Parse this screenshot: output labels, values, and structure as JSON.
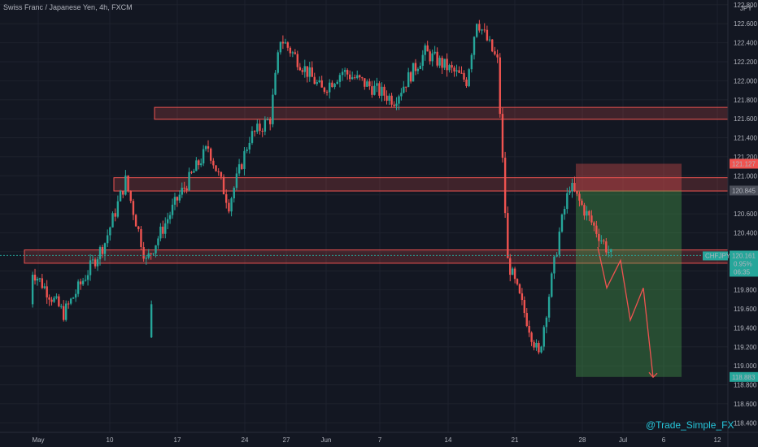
{
  "header": {
    "title": "Swiss Franc / Japanese Yen, 4h, FXCM"
  },
  "watermark": "@Trade_Simple_FX",
  "colors": {
    "bg": "#131722",
    "up": "#26a69a",
    "down": "#ef5350",
    "grid": "#1e222d",
    "zone": "#ef5350",
    "profit": "#1b5e20",
    "loss": "#7f1d1d",
    "arrow": "#ef5350"
  },
  "chart_data": {
    "type": "candlestick",
    "symbol": "CHFJPY",
    "currency": "JPY",
    "yaxis": {
      "ticks": [
        118.4,
        118.6,
        118.8,
        119.0,
        119.2,
        119.4,
        119.6,
        119.8,
        120.0,
        120.2,
        120.4,
        120.6,
        120.8,
        121.0,
        121.2,
        121.4,
        121.6,
        121.8,
        122.0,
        122.2,
        122.4,
        122.6,
        122.8
      ],
      "tick_labels": [
        "118.400",
        "118.600",
        "118.800",
        "119.000",
        "119.200",
        "119.400",
        "119.600",
        "119.800",
        "",
        "",
        "120.400",
        "120.600",
        "",
        "121.000",
        "121.200",
        "121.400",
        "121.600",
        "121.800",
        "122.000",
        "122.200",
        "122.400",
        "122.600",
        "122.800"
      ],
      "range": [
        118.3,
        122.85
      ]
    },
    "xaxis": {
      "labels": [
        "May",
        "10",
        "17",
        "24",
        "27",
        "Jun",
        "7",
        "14",
        "21",
        "28",
        "Jul",
        "6",
        "12"
      ]
    },
    "price_labels": [
      {
        "text": "121.127",
        "value": 121.127,
        "color": "#ef5350"
      },
      {
        "text": "120.845",
        "value": 120.845,
        "color": "#4a4e59"
      },
      {
        "text": "118.883",
        "value": 118.883,
        "color": "#26a69a"
      }
    ],
    "current": {
      "symbol": "CHFJPY",
      "price": "120.161",
      "change": "0.95%",
      "countdown": "06:35",
      "value": 120.161
    },
    "zones": [
      {
        "name": "resistance-zone-upper",
        "from": 121.595,
        "to": 121.72
      },
      {
        "name": "resistance-zone-middle",
        "from": 120.84,
        "to": 120.98
      },
      {
        "name": "support-zone-lower",
        "from": 120.08,
        "to": 120.22
      }
    ],
    "position": {
      "type": "short",
      "entry": 120.845,
      "stop": 121.127,
      "target": 118.883
    },
    "projection": [
      120.25,
      119.82,
      120.11,
      119.48,
      119.82,
      118.88
    ],
    "anchors": [
      {
        "price": 119.3,
        "date": "Apr 29"
      },
      {
        "price": 120.0,
        "date": "May 3"
      },
      {
        "price": 119.55,
        "date": "May 6"
      },
      {
        "price": 120.3,
        "date": "May 10"
      },
      {
        "price": 120.95,
        "date": "May 12"
      },
      {
        "price": 120.1,
        "date": "May 14"
      },
      {
        "price": 120.75,
        "date": "May 17"
      },
      {
        "price": 121.3,
        "date": "May 20"
      },
      {
        "price": 120.7,
        "date": "May 22"
      },
      {
        "price": 121.4,
        "date": "May 24"
      },
      {
        "price": 121.6,
        "date": "May 26"
      },
      {
        "price": 122.45,
        "date": "May 27"
      },
      {
        "price": 121.9,
        "date": "May 31"
      },
      {
        "price": 122.1,
        "date": "Jun 2"
      },
      {
        "price": 121.8,
        "date": "Jun 7"
      },
      {
        "price": 122.3,
        "date": "Jun 10"
      },
      {
        "price": 122.0,
        "date": "Jun 14"
      },
      {
        "price": 122.65,
        "date": "Jun 15"
      },
      {
        "price": 122.2,
        "date": "Jun 17"
      },
      {
        "price": 120.1,
        "date": "Jun 18"
      },
      {
        "price": 119.1,
        "date": "Jun 21"
      },
      {
        "price": 120.4,
        "date": "Jun 23"
      },
      {
        "price": 120.9,
        "date": "Jun 24"
      },
      {
        "price": 120.16,
        "date": "Jun 28"
      }
    ]
  }
}
